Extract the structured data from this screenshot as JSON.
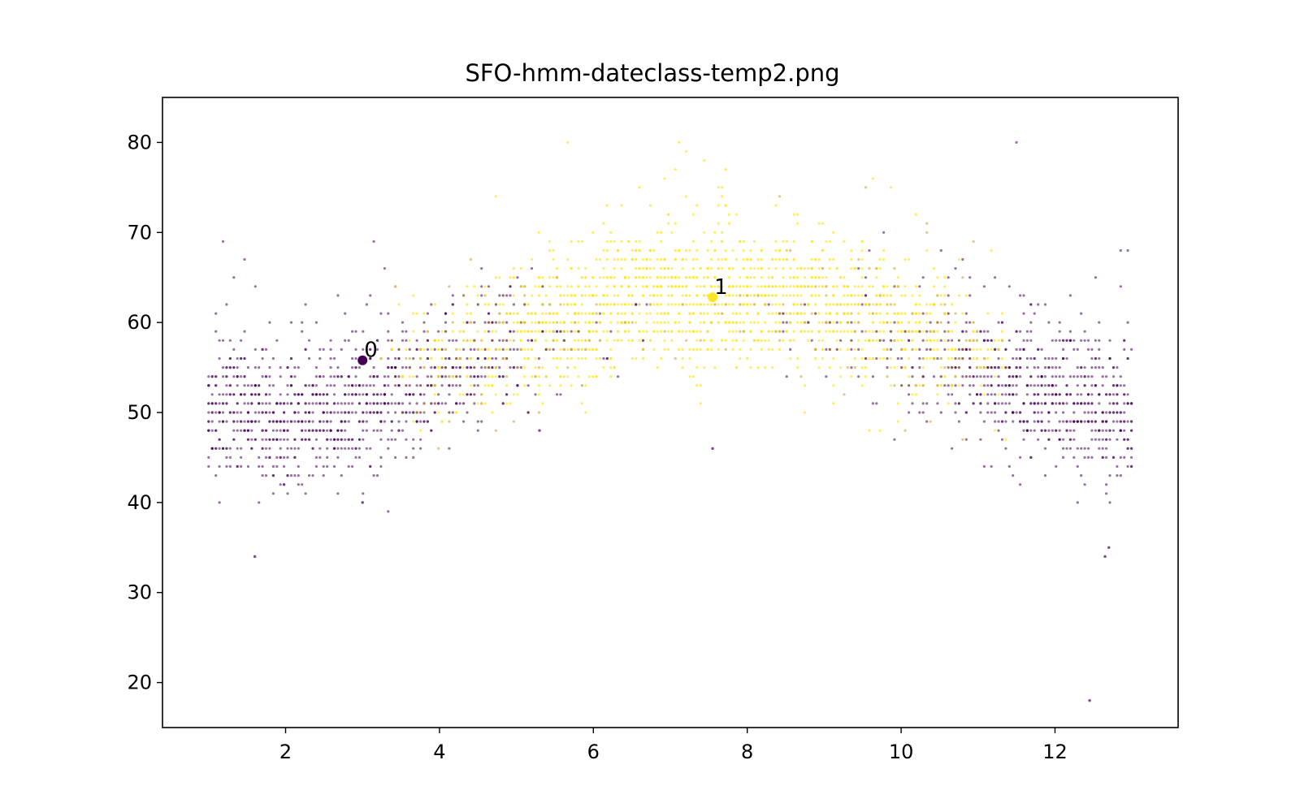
{
  "chart_data": {
    "type": "scatter",
    "title": "SFO-hmm-dateclass-temp2.png",
    "xlabel": "",
    "ylabel": "",
    "xlim": [
      0.4,
      13.6
    ],
    "ylim": [
      15,
      85
    ],
    "xticks": [
      "2",
      "4",
      "6",
      "8",
      "10",
      "12"
    ],
    "yticks": [
      "20",
      "30",
      "40",
      "50",
      "60",
      "70",
      "80"
    ],
    "grid": false,
    "legend": "none",
    "colors": {
      "class0": "#440154",
      "class1": "#fde725",
      "mixed": "#c9a43a"
    },
    "point_clouds": [
      {
        "class": "0",
        "x_range": [
          1.0,
          13.0
        ],
        "note_profile": "winter"
      },
      {
        "class": "1",
        "x_range": [
          3.0,
          11.5
        ],
        "note_profile": "summer"
      }
    ],
    "annotations": [
      {
        "label": "0",
        "x": 3.0,
        "y": 55.8
      },
      {
        "label": "1",
        "x": 7.55,
        "y": 62.8
      }
    ],
    "outliers": [
      {
        "x": 1.6,
        "y": 34
      },
      {
        "x": 3.0,
        "y": 40
      },
      {
        "x": 12.45,
        "y": 18
      },
      {
        "x": 12.65,
        "y": 34
      },
      {
        "x": 12.7,
        "y": 35
      },
      {
        "x": 7.55,
        "y": 46
      },
      {
        "x": 5.3,
        "y": 48
      }
    ]
  }
}
